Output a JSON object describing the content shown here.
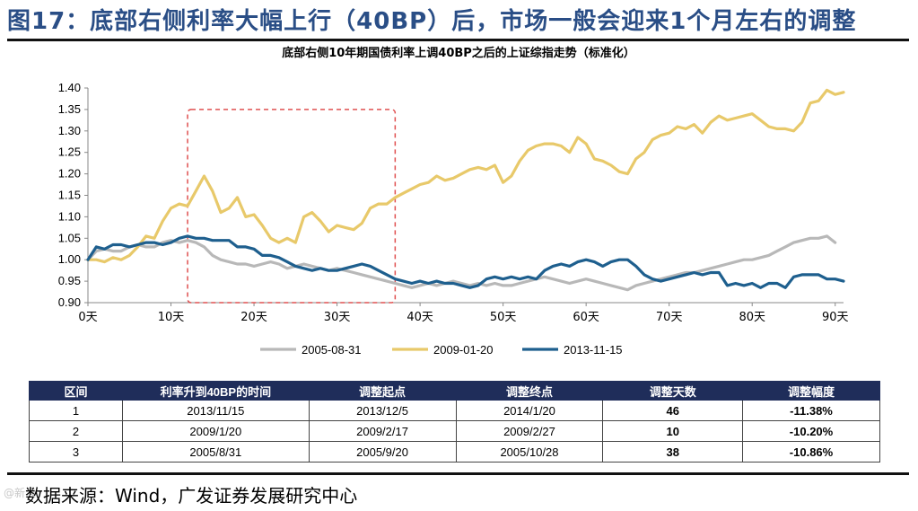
{
  "page": {
    "title": "图17：底部右侧利率大幅上行（40BP）后，市场一般会迎来1个月左右的调整",
    "source": "数据来源：Wind，广发证券发展研究中心",
    "watermark": "@新浪"
  },
  "chart_data": {
    "type": "line",
    "title": "底部右侧10年期国债利率上调40BP之后的上证综指走势（标准化）",
    "xlabel": "",
    "ylabel": "",
    "xlim": [
      0,
      91
    ],
    "ylim": [
      0.9,
      1.4
    ],
    "x_ticks": [
      0,
      10,
      20,
      30,
      40,
      50,
      60,
      70,
      80,
      90
    ],
    "x_tick_labels": [
      "0天",
      "10天",
      "20天",
      "30天",
      "40天",
      "50天",
      "60天",
      "70天",
      "80天",
      "90天"
    ],
    "y_ticks": [
      0.9,
      0.95,
      1.0,
      1.05,
      1.1,
      1.15,
      1.2,
      1.25,
      1.3,
      1.35,
      1.4
    ],
    "y_tick_labels": [
      "0.90",
      "0.95",
      "1.00",
      "1.05",
      "1.10",
      "1.15",
      "1.20",
      "1.25",
      "1.30",
      "1.35",
      "1.40"
    ],
    "highlight_range_x": [
      12,
      37
    ],
    "highlight_range_y": [
      0.9,
      1.35
    ],
    "legend_position": "bottom",
    "series": [
      {
        "name": "2005-08-31",
        "color": "#b8b8b8",
        "values": [
          1.0,
          1.02,
          1.025,
          1.02,
          1.02,
          1.03,
          1.035,
          1.03,
          1.03,
          1.04,
          1.045,
          1.04,
          1.045,
          1.04,
          1.03,
          1.01,
          1.0,
          0.995,
          0.99,
          0.99,
          0.985,
          0.99,
          0.995,
          0.99,
          0.98,
          0.985,
          0.99,
          0.985,
          0.98,
          0.975,
          0.98,
          0.975,
          0.97,
          0.965,
          0.96,
          0.955,
          0.95,
          0.945,
          0.94,
          0.935,
          0.94,
          0.945,
          0.94,
          0.945,
          0.95,
          0.945,
          0.94,
          0.945,
          0.94,
          0.945,
          0.94,
          0.94,
          0.945,
          0.95,
          0.955,
          0.96,
          0.955,
          0.95,
          0.945,
          0.95,
          0.955,
          0.95,
          0.945,
          0.94,
          0.935,
          0.93,
          0.94,
          0.945,
          0.95,
          0.955,
          0.96,
          0.965,
          0.97,
          0.97,
          0.975,
          0.98,
          0.985,
          0.99,
          0.995,
          1.0,
          1.0,
          1.005,
          1.01,
          1.02,
          1.03,
          1.04,
          1.045,
          1.05,
          1.05,
          1.055,
          1.04
        ]
      },
      {
        "name": "2009-01-20",
        "color": "#e8c96a",
        "values": [
          1.0,
          1.0,
          0.995,
          1.005,
          1.0,
          1.01,
          1.03,
          1.055,
          1.05,
          1.09,
          1.12,
          1.13,
          1.125,
          1.16,
          1.195,
          1.16,
          1.11,
          1.12,
          1.145,
          1.1,
          1.105,
          1.08,
          1.05,
          1.04,
          1.05,
          1.04,
          1.1,
          1.11,
          1.09,
          1.065,
          1.08,
          1.075,
          1.07,
          1.085,
          1.12,
          1.13,
          1.13,
          1.145,
          1.155,
          1.165,
          1.175,
          1.18,
          1.195,
          1.185,
          1.19,
          1.2,
          1.21,
          1.215,
          1.21,
          1.22,
          1.18,
          1.195,
          1.23,
          1.255,
          1.265,
          1.27,
          1.27,
          1.265,
          1.25,
          1.285,
          1.27,
          1.235,
          1.23,
          1.22,
          1.205,
          1.2,
          1.235,
          1.25,
          1.28,
          1.29,
          1.295,
          1.31,
          1.305,
          1.315,
          1.295,
          1.32,
          1.335,
          1.325,
          1.33,
          1.335,
          1.34,
          1.325,
          1.31,
          1.305,
          1.305,
          1.3,
          1.32,
          1.365,
          1.37,
          1.395,
          1.385,
          1.39
        ]
      },
      {
        "name": "2013-11-15",
        "color": "#1e5f8e",
        "values": [
          1.0,
          1.03,
          1.025,
          1.035,
          1.035,
          1.03,
          1.035,
          1.04,
          1.04,
          1.035,
          1.04,
          1.05,
          1.055,
          1.05,
          1.05,
          1.045,
          1.045,
          1.045,
          1.03,
          1.03,
          1.025,
          1.01,
          1.01,
          1.005,
          0.995,
          0.985,
          0.98,
          0.975,
          0.98,
          0.975,
          0.975,
          0.98,
          0.985,
          0.99,
          0.985,
          0.975,
          0.965,
          0.955,
          0.95,
          0.945,
          0.95,
          0.945,
          0.95,
          0.945,
          0.945,
          0.94,
          0.935,
          0.94,
          0.955,
          0.96,
          0.955,
          0.96,
          0.955,
          0.96,
          0.955,
          0.975,
          0.985,
          0.99,
          0.985,
          0.995,
          1.0,
          0.995,
          0.985,
          0.995,
          1.0,
          1.0,
          0.985,
          0.965,
          0.955,
          0.95,
          0.955,
          0.96,
          0.965,
          0.97,
          0.965,
          0.97,
          0.97,
          0.94,
          0.945,
          0.94,
          0.945,
          0.935,
          0.945,
          0.945,
          0.935,
          0.96,
          0.965,
          0.965,
          0.965,
          0.955,
          0.955,
          0.95
        ]
      }
    ],
    "table": {
      "headers": [
        "区间",
        "利率升到40BP的时间",
        "调整起点",
        "调整终点",
        "调整天数",
        "调整幅度"
      ],
      "rows": [
        [
          "1",
          "2013/11/15",
          "2013/12/5",
          "2014/1/20",
          "46",
          "-11.38%"
        ],
        [
          "2",
          "2009/1/20",
          "2009/2/17",
          "2009/2/27",
          "10",
          "-10.20%"
        ],
        [
          "3",
          "2005/8/31",
          "2005/9/20",
          "2005/10/28",
          "38",
          "-10.86%"
        ]
      ]
    }
  }
}
